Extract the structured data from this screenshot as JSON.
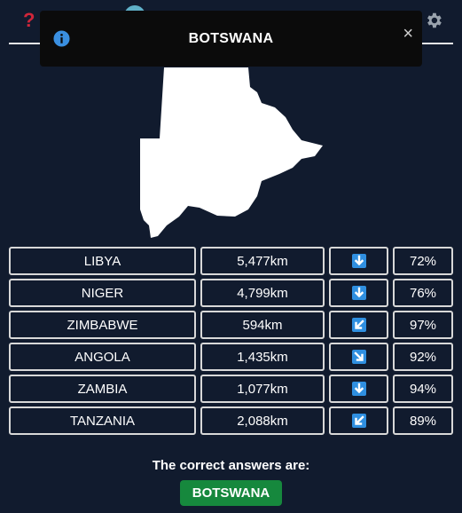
{
  "toast": {
    "title": "BOTSWANA",
    "close_glyph": "×"
  },
  "topbar": {
    "help_glyph": "?"
  },
  "icons": {
    "help": "question-mark-icon",
    "settings": "gear-icon",
    "info": "info-icon",
    "close": "close-icon",
    "country_shape": "botswana-shape"
  },
  "guesses": [
    {
      "country": "LIBYA",
      "distance": "5,477km",
      "direction": "down-arrow-icon",
      "proximity": "72%"
    },
    {
      "country": "NIGER",
      "distance": "4,799km",
      "direction": "down-arrow-icon",
      "proximity": "76%"
    },
    {
      "country": "ZIMBABWE",
      "distance": "594km",
      "direction": "down-left-arrow-icon",
      "proximity": "97%"
    },
    {
      "country": "ANGOLA",
      "distance": "1,435km",
      "direction": "down-right-arrow-icon",
      "proximity": "92%"
    },
    {
      "country": "ZAMBIA",
      "distance": "1,077km",
      "direction": "down-arrow-icon",
      "proximity": "94%"
    },
    {
      "country": "TANZANIA",
      "distance": "2,088km",
      "direction": "down-left-arrow-icon",
      "proximity": "89%"
    }
  ],
  "result": {
    "label": "The correct answers are:",
    "answer": "BOTSWANA"
  },
  "colors": {
    "background": "#111b2e",
    "answer_badge": "#16883d",
    "arrow_tile": "#2f8fe0",
    "help": "#d0263a"
  }
}
